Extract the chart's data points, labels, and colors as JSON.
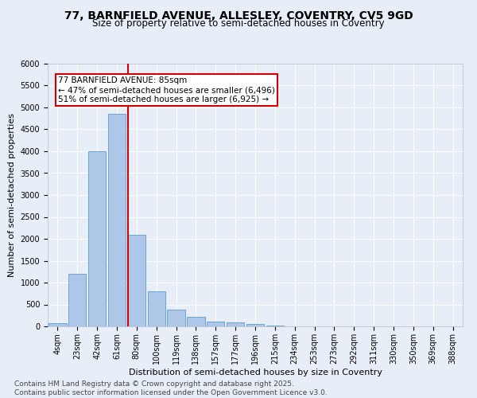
{
  "title_line1": "77, BARNFIELD AVENUE, ALLESLEY, COVENTRY, CV5 9GD",
  "title_line2": "Size of property relative to semi-detached houses in Coventry",
  "xlabel": "Distribution of semi-detached houses by size in Coventry",
  "ylabel": "Number of semi-detached properties",
  "categories": [
    "4sqm",
    "23sqm",
    "42sqm",
    "61sqm",
    "80sqm",
    "100sqm",
    "119sqm",
    "138sqm",
    "157sqm",
    "177sqm",
    "196sqm",
    "215sqm",
    "234sqm",
    "253sqm",
    "273sqm",
    "292sqm",
    "311sqm",
    "330sqm",
    "350sqm",
    "369sqm",
    "388sqm"
  ],
  "values": [
    75,
    1200,
    4000,
    4850,
    2100,
    800,
    380,
    220,
    110,
    100,
    50,
    20,
    5,
    2,
    1,
    0,
    0,
    0,
    0,
    0,
    0
  ],
  "bar_color": "#aec6e8",
  "bar_edgecolor": "#5b9bd5",
  "vline_color": "#cc0000",
  "property_label": "77 BARNFIELD AVENUE: 85sqm",
  "annotation_left": "← 47% of semi-detached houses are smaller (6,496)",
  "annotation_right": "51% of semi-detached houses are larger (6,925) →",
  "annotation_box_edgecolor": "#cc0000",
  "ylim": [
    0,
    6000
  ],
  "yticks": [
    0,
    500,
    1000,
    1500,
    2000,
    2500,
    3000,
    3500,
    4000,
    4500,
    5000,
    5500,
    6000
  ],
  "bg_color": "#e8eef7",
  "grid_color": "#ffffff",
  "footer1": "Contains HM Land Registry data © Crown copyright and database right 2025.",
  "footer2": "Contains public sector information licensed under the Open Government Licence v3.0.",
  "title_fontsize": 10,
  "subtitle_fontsize": 8.5,
  "axis_label_fontsize": 8,
  "tick_fontsize": 7,
  "annotation_fontsize": 7.5,
  "footer_fontsize": 6.5,
  "vline_bar_index": 4
}
